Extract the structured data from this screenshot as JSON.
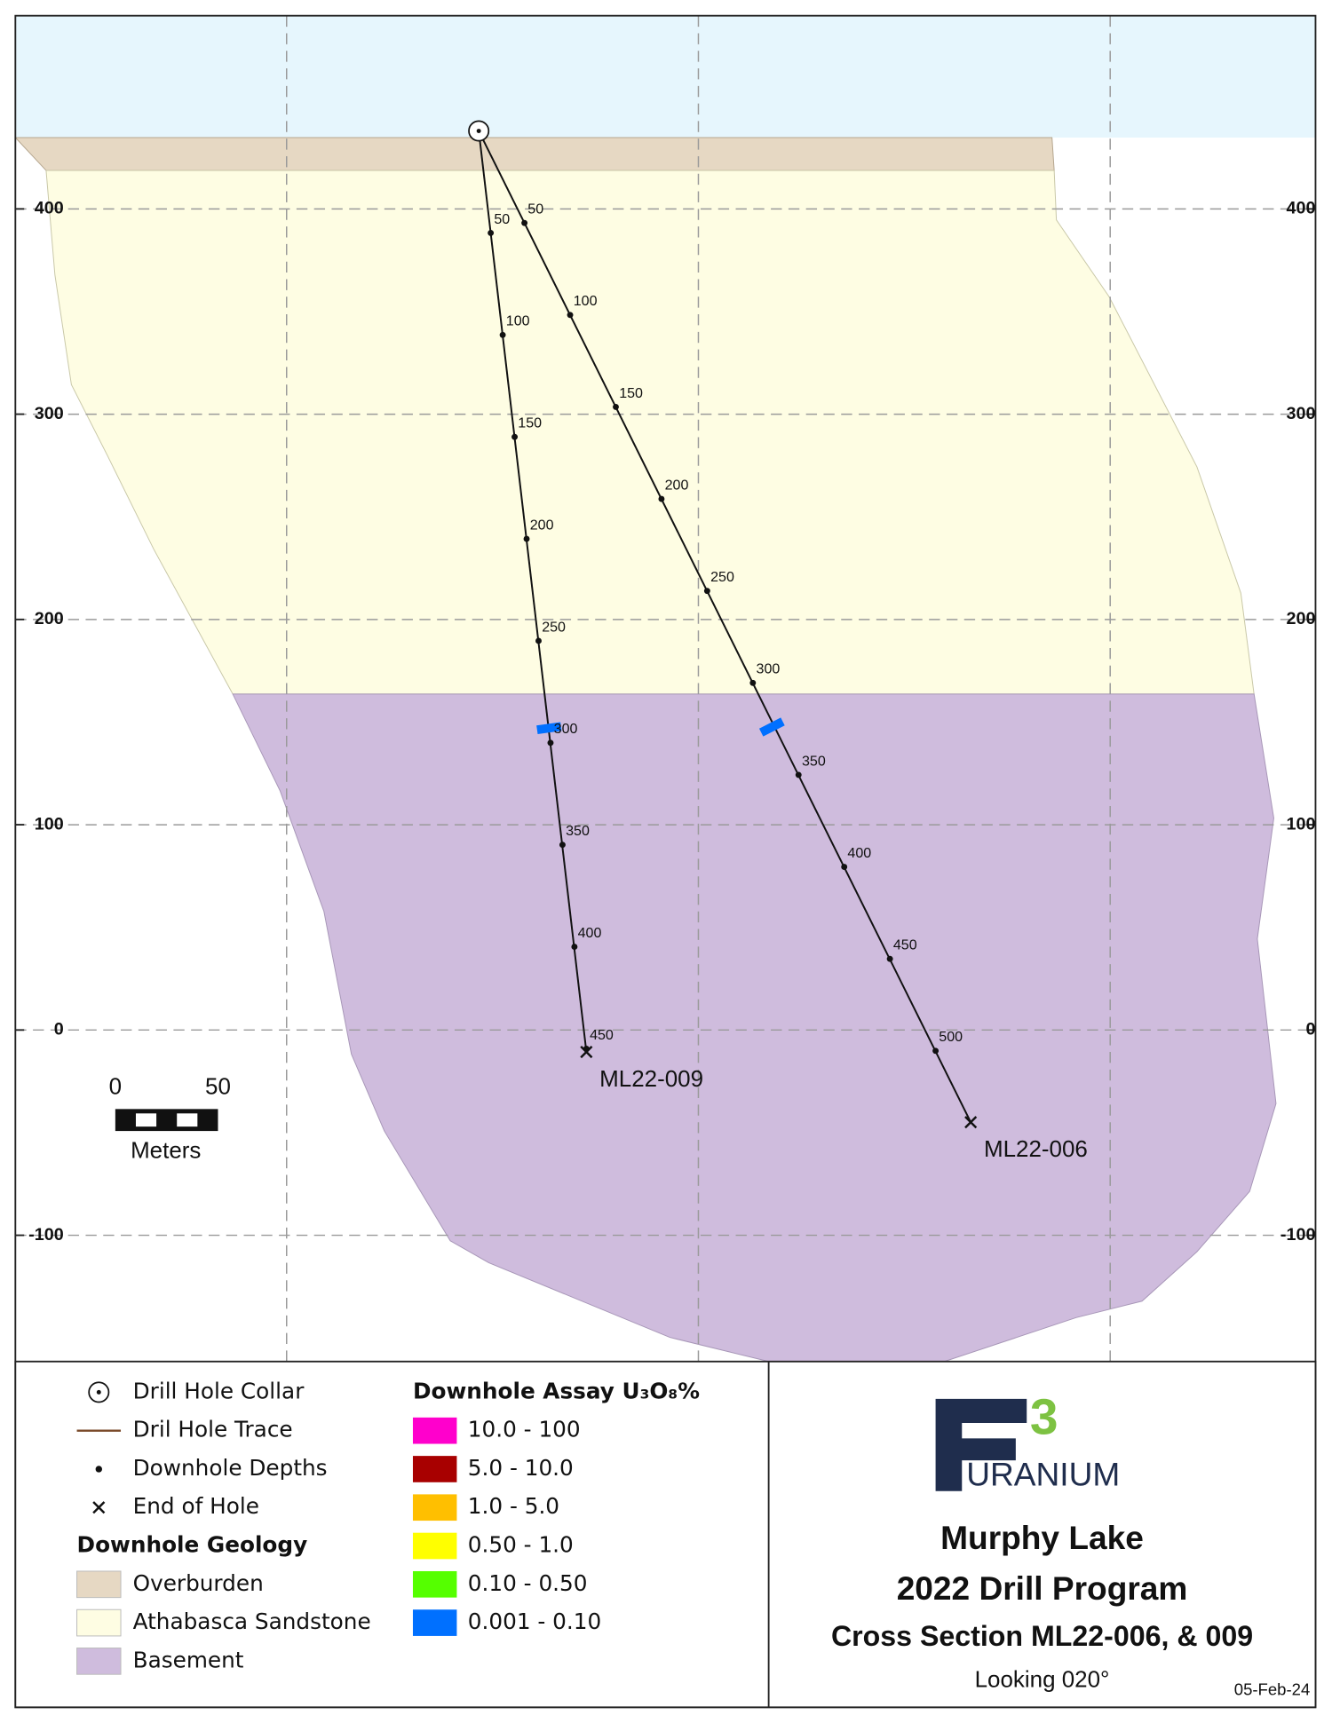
{
  "yticks": [
    400,
    300,
    200,
    100,
    0,
    -100
  ],
  "holes": [
    {
      "name": "ML22-009",
      "depths": [
        50,
        100,
        150,
        200,
        250,
        300,
        350,
        400,
        450
      ]
    },
    {
      "name": "ML22-006",
      "depths": [
        50,
        100,
        150,
        200,
        250,
        300,
        350,
        400,
        450,
        500
      ]
    }
  ],
  "scale_bar": {
    "ticks": [
      0,
      50
    ],
    "unit": "Meters"
  },
  "legend": {
    "symbols": [
      "Drill Hole Collar",
      "Dril Hole Trace",
      "Downhole Depths",
      "End of Hole"
    ],
    "geology_heading": "Downhole Geology",
    "geology": [
      {
        "label": "Overburden",
        "color": "#e6d8c3"
      },
      {
        "label": "Athabasca Sandstone",
        "color": "#fefde3"
      },
      {
        "label": "Basement",
        "color": "#cfbcdd"
      }
    ],
    "assay_heading": "Downhole Assay U₃O₈%",
    "assay": [
      {
        "label": "10.0 - 100",
        "color": "#ff00cc"
      },
      {
        "label": "5.0 - 10.0",
        "color": "#a80000"
      },
      {
        "label": "1.0 - 5.0",
        "color": "#ffbf00"
      },
      {
        "label": "0.50 - 1.0",
        "color": "#ffff00"
      },
      {
        "label": "0.10 - 0.50",
        "color": "#55ff00"
      },
      {
        "label": "0.001 - 0.10",
        "color": "#0070ff"
      }
    ]
  },
  "title_block": {
    "logo_letter": "F",
    "logo_digit": "3",
    "logo_word": "URANIUM",
    "title": "Murphy Lake",
    "subtitle": "2022 Drill Program",
    "section": "Cross Section ML22-006, & 009",
    "view": "Looking 020°",
    "date": "05-Feb-24"
  }
}
